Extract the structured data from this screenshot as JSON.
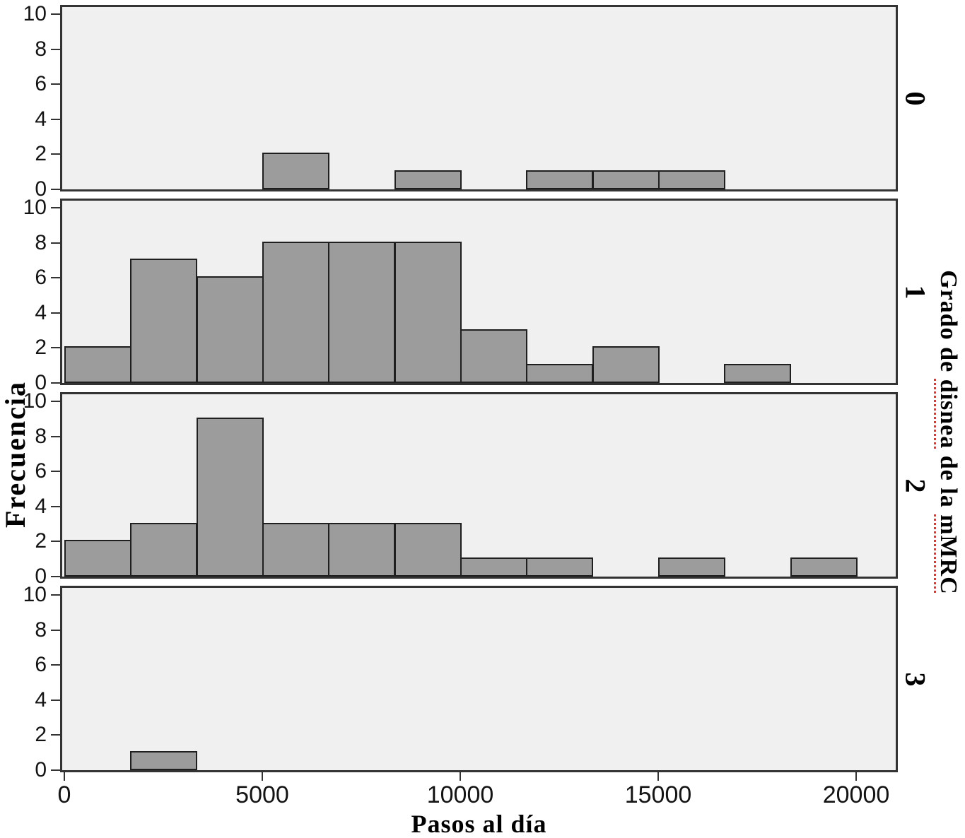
{
  "chart_data": {
    "type": "bar",
    "subtype": "faceted-histogram",
    "xlabel": "Pasos al día",
    "ylabel": "Frecuencia",
    "facet_title_segments": [
      {
        "text": "Grado de ",
        "misspelled": false
      },
      {
        "text": "disnea",
        "misspelled": true
      },
      {
        "text": " de la ",
        "misspelled": false
      },
      {
        "text": "mMRC",
        "misspelled": true
      }
    ],
    "facet_title_full": "Grado de disnea de la mMRC",
    "x_ticks": [
      0,
      5000,
      10000,
      15000,
      20000
    ],
    "y_ticks": [
      0,
      2,
      4,
      6,
      8,
      10
    ],
    "xlim": [
      0,
      21050
    ],
    "ylim": [
      0,
      10
    ],
    "bin_width": 1667,
    "grid": false,
    "legend": "none",
    "facets": [
      {
        "grade": "0",
        "bars": [
          {
            "start": 5000,
            "end": 6667,
            "count": 2
          },
          {
            "start": 8333,
            "end": 10000,
            "count": 1
          },
          {
            "start": 11667,
            "end": 13333,
            "count": 1
          },
          {
            "start": 13333,
            "end": 15000,
            "count": 1
          },
          {
            "start": 15000,
            "end": 16667,
            "count": 1
          }
        ]
      },
      {
        "grade": "1",
        "bars": [
          {
            "start": 0,
            "end": 1667,
            "count": 2
          },
          {
            "start": 1667,
            "end": 3333,
            "count": 7
          },
          {
            "start": 3333,
            "end": 5000,
            "count": 6
          },
          {
            "start": 5000,
            "end": 6667,
            "count": 8
          },
          {
            "start": 6667,
            "end": 8333,
            "count": 8
          },
          {
            "start": 8333,
            "end": 10000,
            "count": 8
          },
          {
            "start": 10000,
            "end": 11667,
            "count": 3
          },
          {
            "start": 11667,
            "end": 13333,
            "count": 1
          },
          {
            "start": 13333,
            "end": 15000,
            "count": 2
          },
          {
            "start": 16667,
            "end": 18333,
            "count": 1
          }
        ]
      },
      {
        "grade": "2",
        "bars": [
          {
            "start": 0,
            "end": 1667,
            "count": 2
          },
          {
            "start": 1667,
            "end": 3333,
            "count": 3
          },
          {
            "start": 3333,
            "end": 5000,
            "count": 9
          },
          {
            "start": 5000,
            "end": 6667,
            "count": 3
          },
          {
            "start": 6667,
            "end": 8333,
            "count": 3
          },
          {
            "start": 8333,
            "end": 10000,
            "count": 3
          },
          {
            "start": 10000,
            "end": 11667,
            "count": 1
          },
          {
            "start": 11667,
            "end": 13333,
            "count": 1
          },
          {
            "start": 15000,
            "end": 16667,
            "count": 1
          },
          {
            "start": 18333,
            "end": 20000,
            "count": 1
          }
        ]
      },
      {
        "grade": "3",
        "bars": [
          {
            "start": 1667,
            "end": 3333,
            "count": 1
          }
        ]
      }
    ],
    "colors": {
      "bar_fill": "#9c9c9c",
      "bar_stroke": "#1f1f1f",
      "panel_bg": "#f0f0f0",
      "panel_border": "#333333",
      "tick": "#333333",
      "text": "#000000",
      "spellcheck_squiggle": "#ff2a2a",
      "background": "#ffffff"
    }
  }
}
